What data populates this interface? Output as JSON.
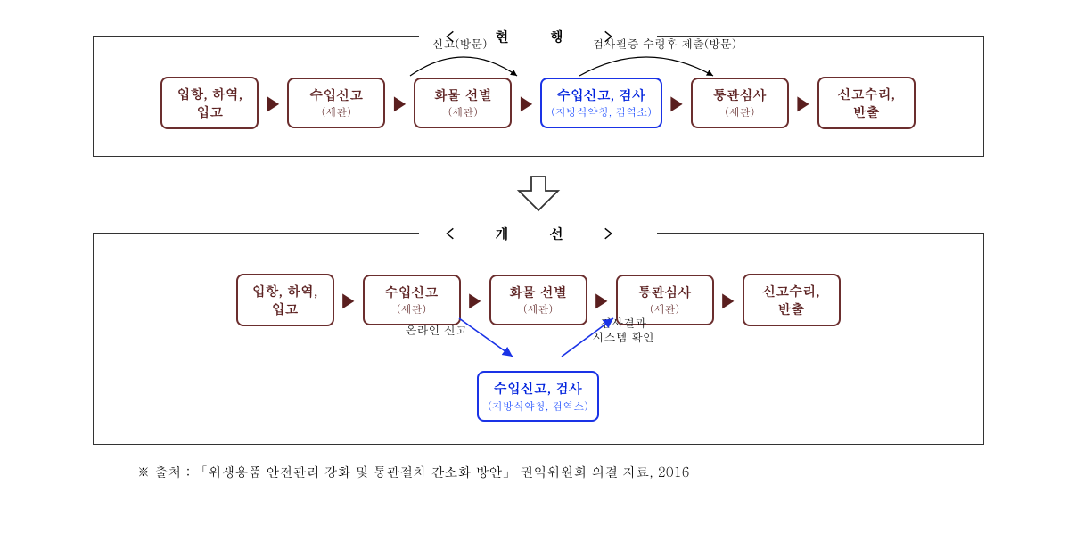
{
  "colors": {
    "box_border_dark": "#6b2e2e",
    "box_text_dark": "#5a1f1f",
    "box_bg": "#ffffff",
    "accent_border": "#1a33e6",
    "accent_text": "#0022dd",
    "accent_sub": "#1144ff",
    "arrow_color": "#5a1f1f",
    "panel_border": "#333333"
  },
  "top_panel": {
    "title": "< 현    행 >",
    "curved_label_left": "신고(방문)",
    "curved_label_right": "검사필증 수령후 제출(방문)",
    "boxes": [
      {
        "main": "입항, 하역,\n입고",
        "sub": "",
        "accent": false
      },
      {
        "main": "수입신고",
        "sub": "(세관)",
        "accent": false
      },
      {
        "main": "화물 선별",
        "sub": "(세관)",
        "accent": false
      },
      {
        "main": "수입신고, 검사",
        "sub": "(지방식약청, 검역소)",
        "accent": true
      },
      {
        "main": "통관심사",
        "sub": "(세관)",
        "accent": false
      },
      {
        "main": "신고수리,\n반출",
        "sub": "",
        "accent": false
      }
    ]
  },
  "bottom_panel": {
    "title": "< 개    선 >",
    "boxes": [
      {
        "main": "입항, 하역,\n입고",
        "sub": "",
        "accent": false
      },
      {
        "main": "수입신고",
        "sub": "(세관)",
        "accent": false
      },
      {
        "main": "화물 선별",
        "sub": "(세관)",
        "accent": false
      },
      {
        "main": "통관심사",
        "sub": "(세관)",
        "accent": false
      },
      {
        "main": "신고수리,\n반출",
        "sub": "",
        "accent": false
      }
    ],
    "sub_box": {
      "main": "수입신고, 검사",
      "sub": "(지방식약청, 검역소)",
      "accent": true
    },
    "diag_label_left": "온라인 신고",
    "diag_label_right": "검사결과\n시스템 확인"
  },
  "source_note": "※ 출처 : 「위생용품 안전관리 강화 및 통관절차 간소화 방안」 권익위원회 의결 자료, 2016"
}
